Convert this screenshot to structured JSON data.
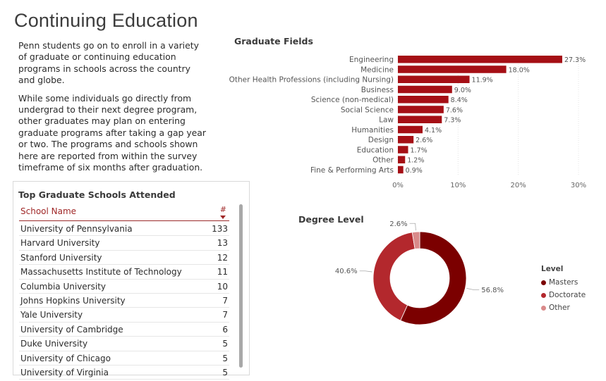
{
  "page": {
    "title": "Continuing Education",
    "intro_paragraphs": [
      "Penn students go on to enroll in a variety of graduate or continuing education programs in schools across the country and globe.",
      "While some individuals go directly from undergrad to their next degree program, other graduates may plan on entering graduate programs after taking a gap year or two. The programs and schools shown here are reported from within the survey timeframe of six months after graduation."
    ]
  },
  "schools": {
    "title": "Top Graduate Schools Attended",
    "col_name": "School Name",
    "col_count": "#",
    "rows": [
      {
        "name": "University of Pennsylvania",
        "count": "133"
      },
      {
        "name": "Harvard University",
        "count": "13"
      },
      {
        "name": "Stanford University",
        "count": "12"
      },
      {
        "name": "Massachusetts Institute of Technology",
        "count": "11"
      },
      {
        "name": "Columbia University",
        "count": "10"
      },
      {
        "name": "Johns Hopkins University",
        "count": "7"
      },
      {
        "name": "Yale University",
        "count": "7"
      },
      {
        "name": "University of Cambridge",
        "count": "6"
      },
      {
        "name": "Duke University",
        "count": "5"
      },
      {
        "name": "University of Chicago",
        "count": "5"
      },
      {
        "name": "University of Virginia",
        "count": "5"
      }
    ]
  },
  "chart_data": [
    {
      "type": "bar",
      "orientation": "horizontal",
      "title": "Graduate Fields",
      "categories": [
        "Engineering",
        "Medicine",
        "Other Health Professions (including Nursing)",
        "Business",
        "Science (non-medical)",
        "Social Science",
        "Law",
        "Humanities",
        "Design",
        "Education",
        "Other",
        "Fine & Performing Arts"
      ],
      "values": [
        27.3,
        18.0,
        11.9,
        9.0,
        8.4,
        7.6,
        7.3,
        4.1,
        2.6,
        1.7,
        1.2,
        0.9
      ],
      "value_labels": [
        "27.3%",
        "18.0%",
        "11.9%",
        "9.0%",
        "8.4%",
        "7.6%",
        "7.3%",
        "4.1%",
        "2.6%",
        "1.7%",
        "1.2%",
        "0.9%"
      ],
      "xlim": [
        0,
        30
      ],
      "xticks": [
        0,
        10,
        20,
        30
      ],
      "xtick_labels": [
        "0%",
        "10%",
        "20%",
        "30%"
      ],
      "color": "#a50f15",
      "grid": true
    },
    {
      "type": "pie",
      "style": "donut",
      "title": "Degree Level",
      "legend_title": "Level",
      "legend_position": "right",
      "categories": [
        "Masters",
        "Doctorate",
        "Other"
      ],
      "values": [
        56.8,
        40.6,
        2.6
      ],
      "value_labels": [
        "56.8%",
        "40.6%",
        "2.6%"
      ],
      "colors": [
        "#7b0000",
        "#b3282d",
        "#d98a8a"
      ]
    }
  ]
}
